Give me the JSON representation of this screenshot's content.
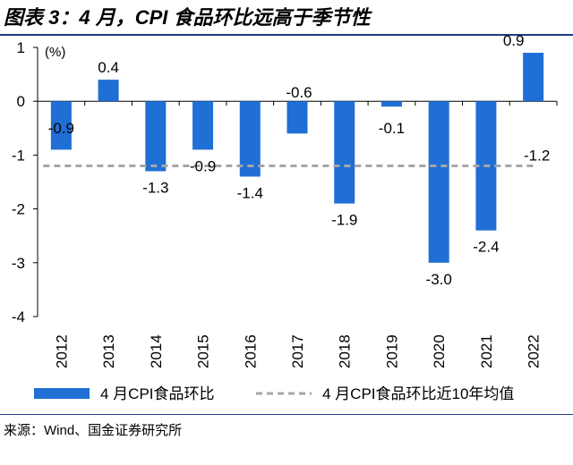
{
  "figure_title": "图表 3：4 月，CPI 食品环比远高于季节性",
  "source": "来源：Wind、国金证券研究所",
  "chart_data": {
    "type": "bar",
    "categories": [
      "2012",
      "2013",
      "2014",
      "2015",
      "2016",
      "2017",
      "2018",
      "2019",
      "2020",
      "2021",
      "2022"
    ],
    "series": [
      {
        "name": "4 月CPI食品环比",
        "type": "bar",
        "values": [
          -0.9,
          0.4,
          -1.3,
          -0.9,
          -1.4,
          -0.6,
          -1.9,
          -0.1,
          -3.0,
          -2.4,
          0.9
        ],
        "labels": [
          "-0.9",
          "0.4",
          "-1.3",
          "-0.9",
          "-1.4",
          "-0.6",
          "-1.9",
          "-0.1",
          "-3.0",
          "-2.4",
          "0.9"
        ],
        "color": "#1f6fd4"
      },
      {
        "name": "4 月CPI食品环比近10年均值",
        "type": "line",
        "style": "dashed",
        "value": -1.2,
        "label": "-1.2",
        "color": "#a6a6a6"
      }
    ],
    "unit": "(%)",
    "ylim": [
      -4,
      1
    ],
    "yticks": [
      "1",
      "0",
      "-1",
      "-2",
      "-3",
      "-4"
    ],
    "ytick_values": [
      1,
      0,
      -1,
      -2,
      -3,
      -4
    ],
    "grid": false,
    "legend_position": "bottom"
  }
}
